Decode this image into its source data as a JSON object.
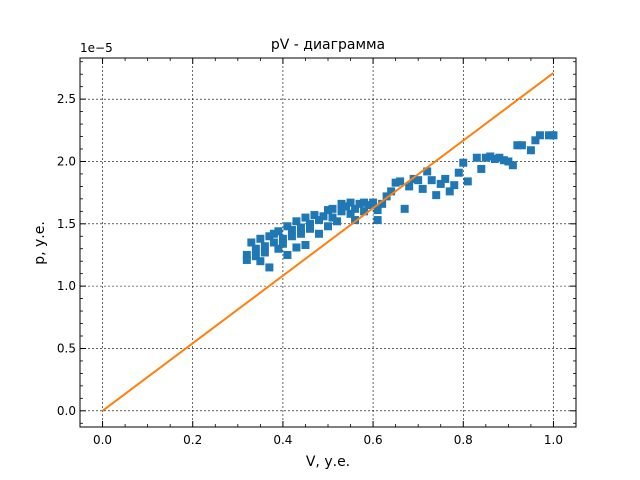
{
  "chart_data": {
    "type": "scatter",
    "title": "pV - диаграмма",
    "xlabel": "V, у.е.",
    "ylabel": "p, у.е.",
    "y_offset_label": "1e−5",
    "xlim": [
      -0.05,
      1.05
    ],
    "ylim": [
      -0.13,
      2.83
    ],
    "xticks": [
      0.0,
      0.2,
      0.4,
      0.6,
      0.8,
      1.0
    ],
    "xtick_labels": [
      "0.0",
      "0.2",
      "0.4",
      "0.6",
      "0.8",
      "1.0"
    ],
    "yticks": [
      0.0,
      0.5,
      1.0,
      1.5,
      2.0,
      2.5
    ],
    "ytick_labels": [
      "0.0",
      "0.5",
      "1.0",
      "1.5",
      "2.0",
      "2.5"
    ],
    "grid": true,
    "colors": {
      "points": "#1f77b4",
      "line": "#ff7f0e"
    },
    "series": [
      {
        "kind": "scatter",
        "marker": "square",
        "points": [
          [
            0.32,
            1.25
          ],
          [
            0.32,
            1.21
          ],
          [
            0.33,
            1.35
          ],
          [
            0.34,
            1.3
          ],
          [
            0.34,
            1.24
          ],
          [
            0.35,
            1.38
          ],
          [
            0.35,
            1.2
          ],
          [
            0.36,
            1.32
          ],
          [
            0.36,
            1.27
          ],
          [
            0.37,
            1.4
          ],
          [
            0.37,
            1.15
          ],
          [
            0.38,
            1.35
          ],
          [
            0.38,
            1.42
          ],
          [
            0.39,
            1.3
          ],
          [
            0.39,
            1.44
          ],
          [
            0.4,
            1.38
          ],
          [
            0.4,
            1.34
          ],
          [
            0.41,
            1.48
          ],
          [
            0.41,
            1.25
          ],
          [
            0.42,
            1.4
          ],
          [
            0.42,
            1.45
          ],
          [
            0.43,
            1.31
          ],
          [
            0.43,
            1.52
          ],
          [
            0.44,
            1.42
          ],
          [
            0.44,
            1.47
          ],
          [
            0.45,
            1.55
          ],
          [
            0.45,
            1.33
          ],
          [
            0.46,
            1.5
          ],
          [
            0.46,
            1.46
          ],
          [
            0.47,
            1.57
          ],
          [
            0.48,
            1.53
          ],
          [
            0.48,
            1.42
          ],
          [
            0.49,
            1.56
          ],
          [
            0.5,
            1.48
          ],
          [
            0.5,
            1.61
          ],
          [
            0.51,
            1.55
          ],
          [
            0.51,
            1.62
          ],
          [
            0.52,
            1.52
          ],
          [
            0.53,
            1.6
          ],
          [
            0.53,
            1.66
          ],
          [
            0.54,
            1.64
          ],
          [
            0.55,
            1.58
          ],
          [
            0.55,
            1.67
          ],
          [
            0.56,
            1.62
          ],
          [
            0.56,
            1.53
          ],
          [
            0.57,
            1.66
          ],
          [
            0.58,
            1.6
          ],
          [
            0.58,
            1.67
          ],
          [
            0.59,
            1.65
          ],
          [
            0.6,
            1.67
          ],
          [
            0.61,
            1.53
          ],
          [
            0.61,
            1.61
          ],
          [
            0.62,
            1.66
          ],
          [
            0.63,
            1.72
          ],
          [
            0.64,
            1.76
          ],
          [
            0.65,
            1.83
          ],
          [
            0.66,
            1.84
          ],
          [
            0.67,
            1.62
          ],
          [
            0.68,
            1.8
          ],
          [
            0.69,
            1.86
          ],
          [
            0.7,
            1.85
          ],
          [
            0.71,
            1.78
          ],
          [
            0.72,
            1.92
          ],
          [
            0.73,
            1.85
          ],
          [
            0.74,
            1.73
          ],
          [
            0.75,
            1.82
          ],
          [
            0.76,
            1.86
          ],
          [
            0.77,
            1.76
          ],
          [
            0.78,
            1.81
          ],
          [
            0.79,
            1.91
          ],
          [
            0.8,
            1.99
          ],
          [
            0.81,
            1.84
          ],
          [
            0.83,
            2.03
          ],
          [
            0.84,
            1.94
          ],
          [
            0.85,
            2.03
          ],
          [
            0.86,
            2.04
          ],
          [
            0.87,
            2.02
          ],
          [
            0.88,
            2.03
          ],
          [
            0.89,
            2.01
          ],
          [
            0.9,
            2.0
          ],
          [
            0.91,
            1.97
          ],
          [
            0.92,
            2.13
          ],
          [
            0.93,
            2.13
          ],
          [
            0.95,
            2.09
          ],
          [
            0.96,
            2.17
          ],
          [
            0.97,
            2.21
          ],
          [
            0.99,
            2.21
          ],
          [
            1.0,
            2.21
          ]
        ]
      },
      {
        "kind": "line",
        "points": [
          [
            0.0,
            0.0
          ],
          [
            1.0,
            2.71
          ]
        ]
      }
    ]
  }
}
